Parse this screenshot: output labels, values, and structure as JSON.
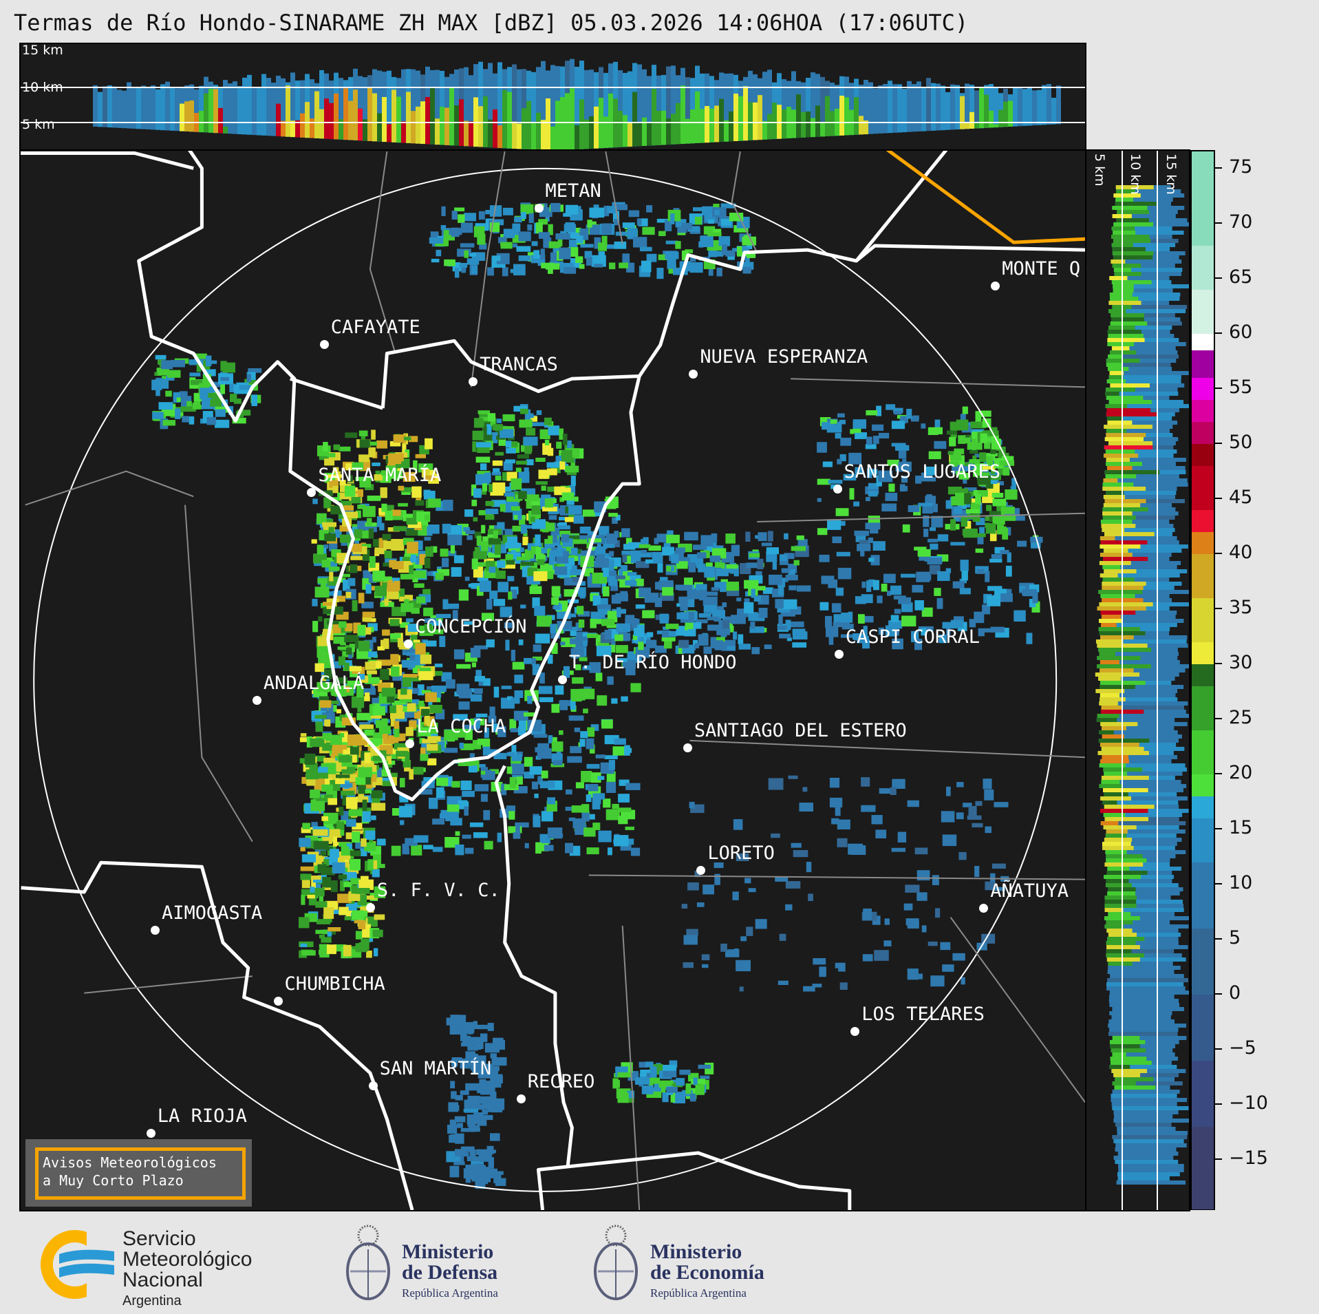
{
  "title": "Termas de Río Hondo-SINARAME ZH MAX [dBZ] 05.03.2026 14:06HOA (17:06UTC)",
  "cross_section_top": {
    "height_labels": [
      "15 km",
      "10 km",
      "5 km"
    ]
  },
  "cross_section_right": {
    "height_labels": [
      "5 km",
      "10 km",
      "15 km"
    ]
  },
  "colorbar": {
    "unit": "dBZ",
    "range": [
      -19.5,
      76.5
    ],
    "tick_labels": [
      "75",
      "70",
      "65",
      "60",
      "55",
      "50",
      "45",
      "40",
      "35",
      "30",
      "25",
      "20",
      "15",
      "10",
      "5",
      "0",
      "−5",
      "−10",
      "−15"
    ],
    "ticks": [
      75,
      70,
      65,
      60,
      55,
      50,
      45,
      40,
      35,
      30,
      25,
      20,
      15,
      10,
      5,
      0,
      -5,
      -10,
      -15
    ],
    "bands": [
      {
        "from": -19.5,
        "to": -12,
        "color": "#3c416e"
      },
      {
        "from": -12,
        "to": -6,
        "color": "#3a4a80"
      },
      {
        "from": -6,
        "to": 0,
        "color": "#355a8c"
      },
      {
        "from": 0,
        "to": 6,
        "color": "#336895"
      },
      {
        "from": 6,
        "to": 12,
        "color": "#2f79ae"
      },
      {
        "from": 12,
        "to": 16,
        "color": "#2a8fc4"
      },
      {
        "from": 16,
        "to": 18,
        "color": "#2aa8d8"
      },
      {
        "from": 18,
        "to": 20,
        "color": "#4ee03a"
      },
      {
        "from": 20,
        "to": 24,
        "color": "#44cc32"
      },
      {
        "from": 24,
        "to": 28,
        "color": "#35a02a"
      },
      {
        "from": 28,
        "to": 30,
        "color": "#246b20"
      },
      {
        "from": 30,
        "to": 32,
        "color": "#eeea38"
      },
      {
        "from": 32,
        "to": 36,
        "color": "#d9d530"
      },
      {
        "from": 36,
        "to": 40,
        "color": "#d0a824"
      },
      {
        "from": 40,
        "to": 42,
        "color": "#de8018"
      },
      {
        "from": 42,
        "to": 44,
        "color": "#ec1030"
      },
      {
        "from": 44,
        "to": 48,
        "color": "#c0001c"
      },
      {
        "from": 48,
        "to": 50,
        "color": "#980010"
      },
      {
        "from": 50,
        "to": 52,
        "color": "#c00060"
      },
      {
        "from": 52,
        "to": 54,
        "color": "#dd00a0"
      },
      {
        "from": 54,
        "to": 56,
        "color": "#ee00e8"
      },
      {
        "from": 56,
        "to": 58.5,
        "color": "#a000a0"
      },
      {
        "from": 58.5,
        "to": 60,
        "color": "#ffffff"
      },
      {
        "from": 60,
        "to": 64,
        "color": "#d4f2e4"
      },
      {
        "from": 64,
        "to": 68,
        "color": "#b0e8d4"
      },
      {
        "from": 68,
        "to": 76.5,
        "color": "#88dcbc"
      }
    ]
  },
  "map": {
    "background": "#1b1b1b",
    "border_color": "#ffffff",
    "boundary_accent_color": "#ffa500",
    "cities": [
      "METAN",
      "MONTE Q",
      "CAFAYATE",
      "TRANCAS",
      "NUEVA ESPERANZA",
      "SANTA MARÍA",
      "SANTOS LUGARES",
      "CONCEPCIÓN",
      "CASPI CORRAL",
      "T. DE RÍO HONDO",
      "ANDALGALÁ",
      "LA COCHA",
      "SANTIAGO DEL ESTERO",
      "LORETO",
      "AÑATUYA",
      "S. F. V. C.",
      "AIMOGASTA",
      "CHUMBICHA",
      "LOS TELARES",
      "SAN MARTÍN",
      "RECREO",
      "LA RIOJA"
    ]
  },
  "avisos": {
    "line1": "Avisos Meteorológicos",
    "line2": "a Muy Corto Plazo"
  },
  "footer": {
    "smn": {
      "line1": "Servicio",
      "line2": "Meteorológico",
      "line3": "Nacional",
      "line4": "Argentina"
    },
    "defensa": {
      "line1": "Ministerio",
      "line2": "de Defensa",
      "line3": "República Argentina"
    },
    "economia": {
      "line1": "Ministerio",
      "line2": "de Economía",
      "line3": "República Argentina"
    }
  }
}
